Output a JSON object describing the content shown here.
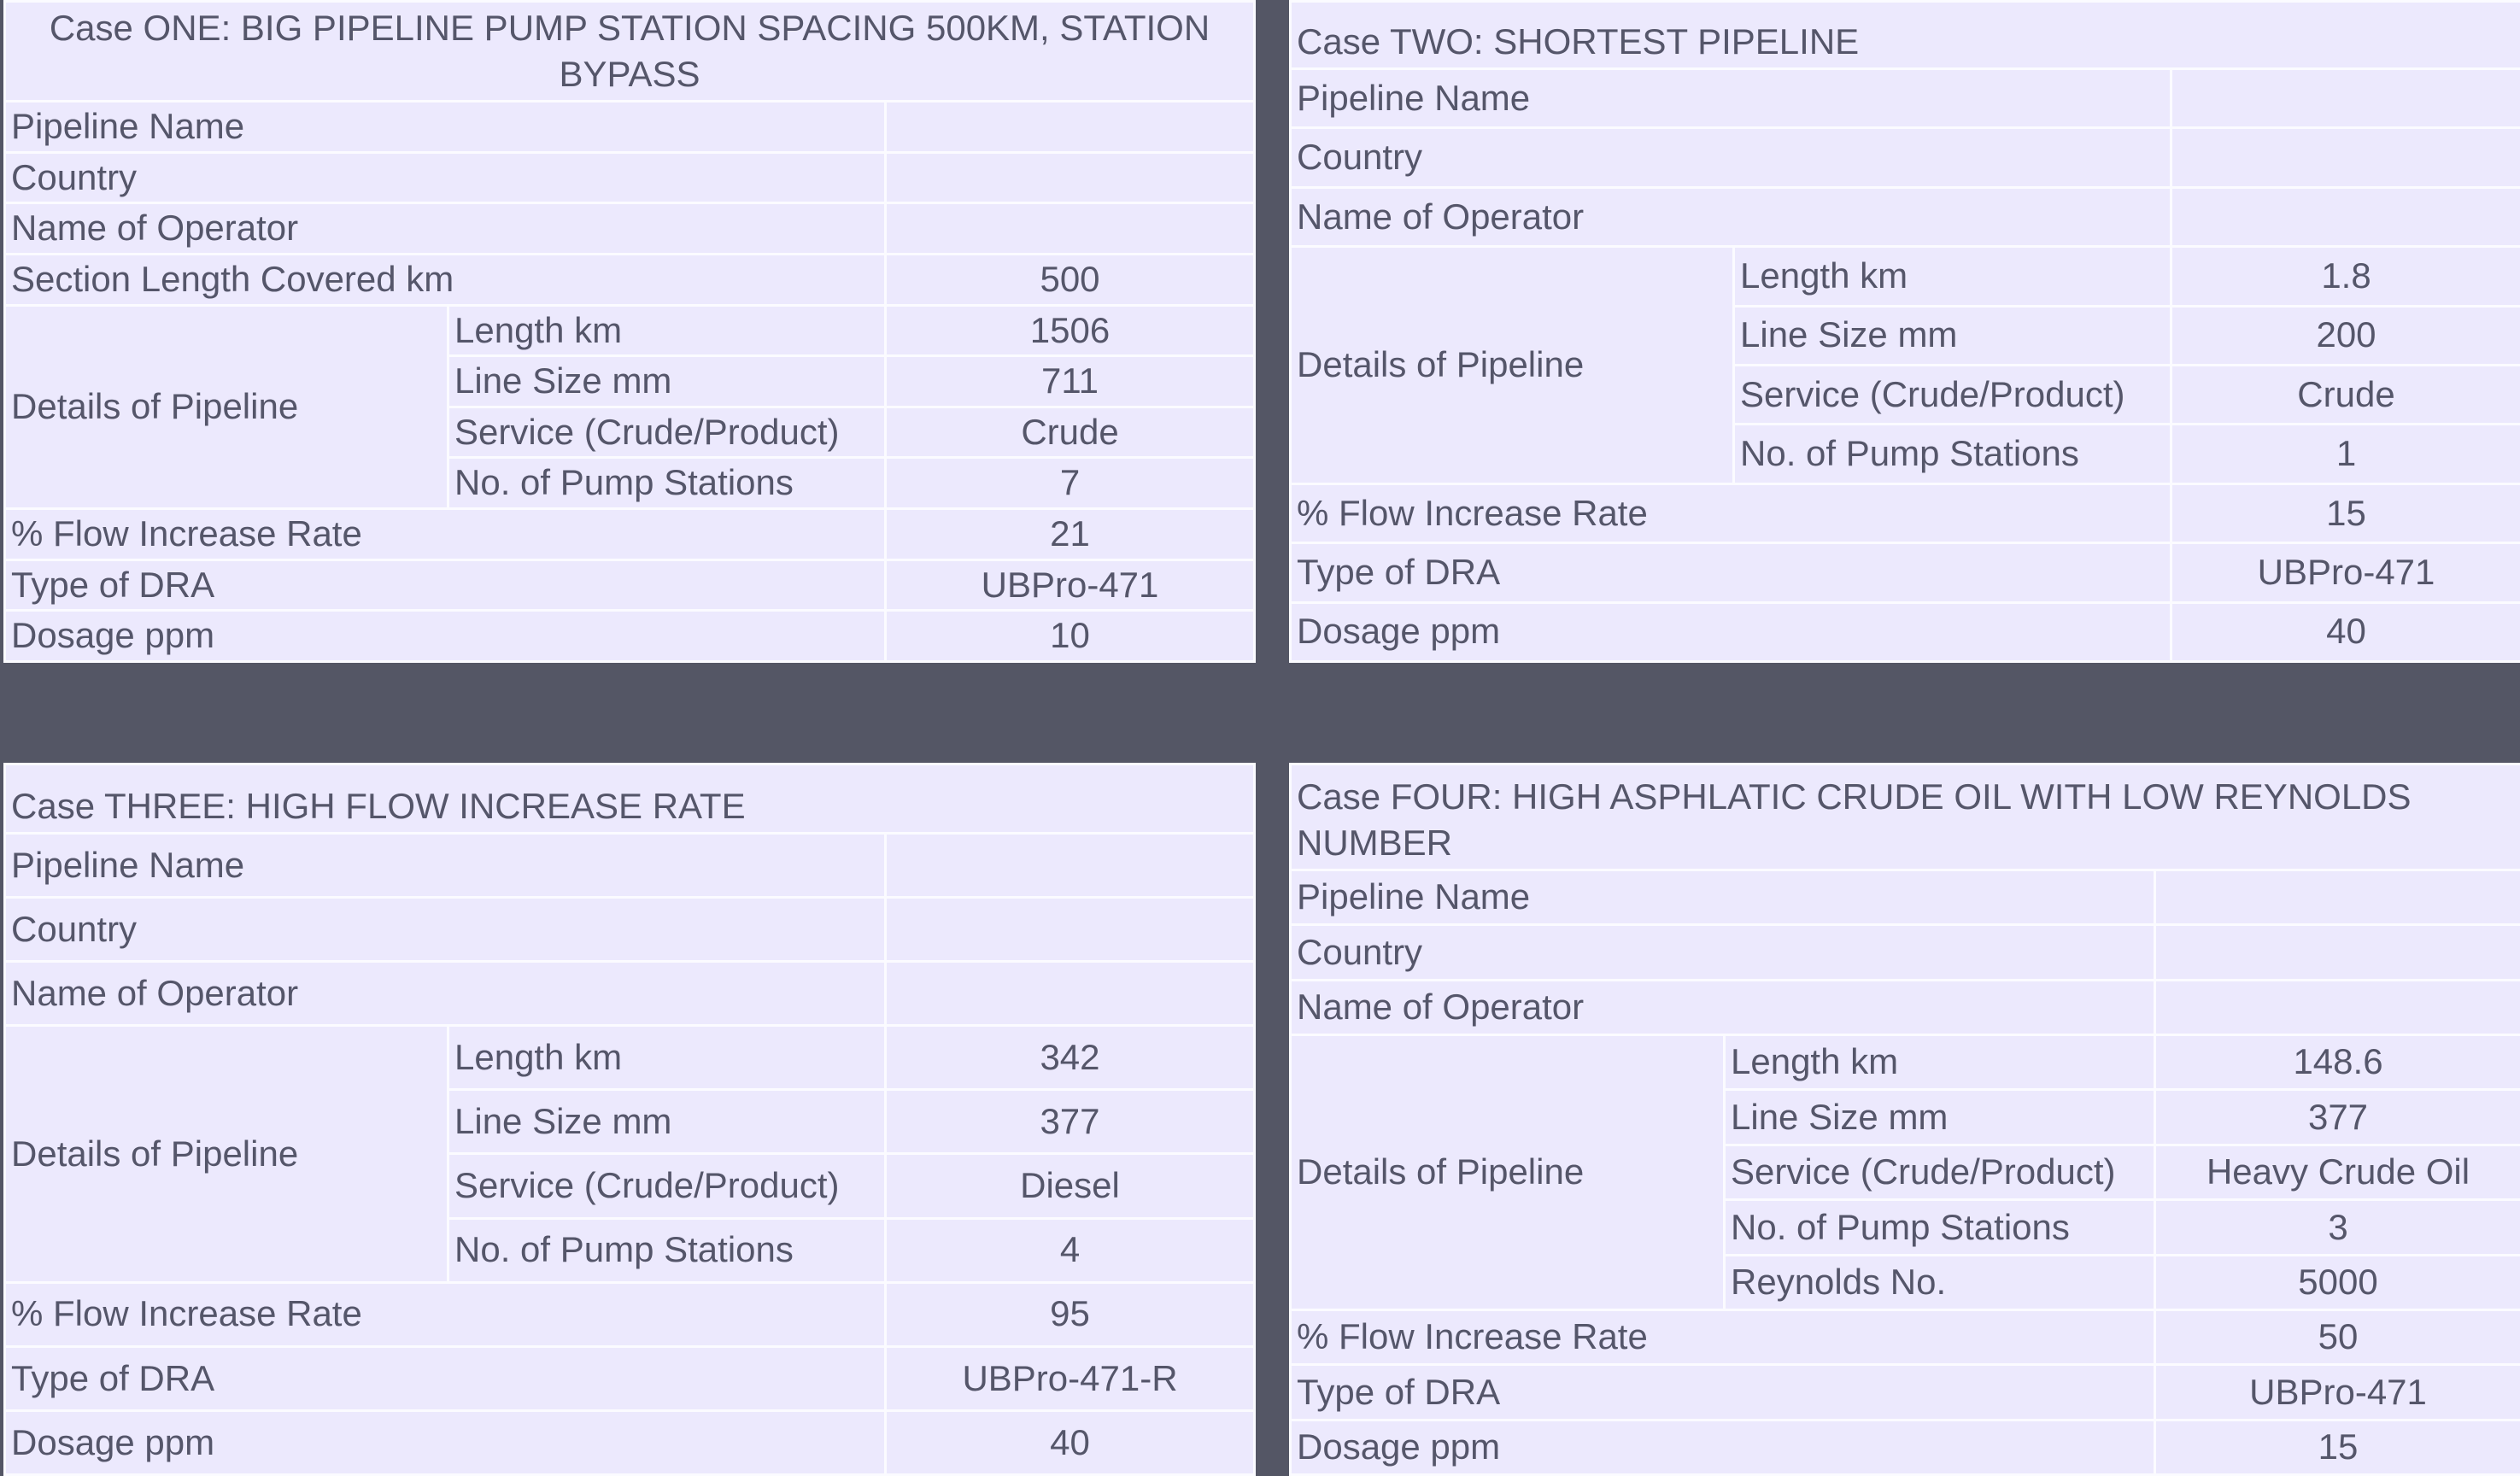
{
  "colors": {
    "background": "#545665",
    "cell": "#ece9fd",
    "text": "#55566a",
    "border": "#fbfbff"
  },
  "cases": [
    {
      "title": "Case ONE: BIG PIPELINE PUMP STATION SPACING 500KM, STATION BYPASS",
      "title_align": "center",
      "rows": [
        {
          "label": "Pipeline Name",
          "value": ""
        },
        {
          "label": "Country",
          "value": ""
        },
        {
          "label": "Name of Operator",
          "value": ""
        },
        {
          "label": "Section Length Covered km",
          "value": "500"
        },
        {
          "label": "Details of Pipeline",
          "items": [
            {
              "label": "Length km",
              "value": "1506"
            },
            {
              "label": "Line Size mm",
              "value": "711"
            },
            {
              "label": "Service (Crude/Product)",
              "value": "Crude"
            },
            {
              "label": "No. of Pump Stations",
              "value": "7"
            }
          ]
        },
        {
          "label": "% Flow Increase Rate",
          "value": "21"
        },
        {
          "label": "Type of DRA",
          "value": "UBPro-471"
        },
        {
          "label": "Dosage ppm",
          "value": "10"
        }
      ]
    },
    {
      "title": "Case TWO: SHORTEST PIPELINE",
      "title_align": "left",
      "rows": [
        {
          "label": "Pipeline Name",
          "value": ""
        },
        {
          "label": "Country",
          "value": ""
        },
        {
          "label": "Name of Operator",
          "value": ""
        },
        {
          "label": "Details of Pipeline",
          "items": [
            {
              "label": "Length km",
              "value": "1.8"
            },
            {
              "label": "Line Size mm",
              "value": "200"
            },
            {
              "label": "Service (Crude/Product)",
              "value": "Crude"
            },
            {
              "label": "No. of Pump Stations",
              "value": "1"
            }
          ]
        },
        {
          "label": "% Flow Increase Rate",
          "value": "15"
        },
        {
          "label": "Type of DRA",
          "value": "UBPro-471"
        },
        {
          "label": "Dosage ppm",
          "value": "40"
        }
      ]
    },
    {
      "title": "Case THREE: HIGH FLOW INCREASE RATE",
      "title_align": "left",
      "rows": [
        {
          "label": "Pipeline Name",
          "value": ""
        },
        {
          "label": "Country",
          "value": ""
        },
        {
          "label": "Name of Operator",
          "value": ""
        },
        {
          "label": "Details of Pipeline",
          "items": [
            {
              "label": "Length km",
              "value": "342"
            },
            {
              "label": "Line Size mm",
              "value": "377"
            },
            {
              "label": "Service (Crude/Product)",
              "value": "Diesel"
            },
            {
              "label": "No. of Pump Stations",
              "value": "4"
            }
          ]
        },
        {
          "label": "% Flow Increase Rate",
          "value": "95"
        },
        {
          "label": "Type of DRA",
          "value": "UBPro-471-R"
        },
        {
          "label": "Dosage ppm",
          "value": "40"
        }
      ]
    },
    {
      "title": "Case FOUR: HIGH ASPHLATIC CRUDE OIL WITH LOW REYNOLDS NUMBER",
      "title_align": "left",
      "rows": [
        {
          "label": "Pipeline Name",
          "value": ""
        },
        {
          "label": "Country",
          "value": ""
        },
        {
          "label": "Name of Operator",
          "value": ""
        },
        {
          "label": "Details of Pipeline",
          "items": [
            {
              "label": "Length km",
              "value": "148.6"
            },
            {
              "label": "Line Size mm",
              "value": "377"
            },
            {
              "label": "Service (Crude/Product)",
              "value": "Heavy Crude Oil"
            },
            {
              "label": "No. of Pump Stations",
              "value": "3"
            },
            {
              "label": "Reynolds No.",
              "value": "5000"
            }
          ]
        },
        {
          "label": "% Flow Increase Rate",
          "value": "50"
        },
        {
          "label": "Type of DRA",
          "value": "UBPro-471"
        },
        {
          "label": "Dosage ppm",
          "value": "15"
        }
      ]
    }
  ]
}
